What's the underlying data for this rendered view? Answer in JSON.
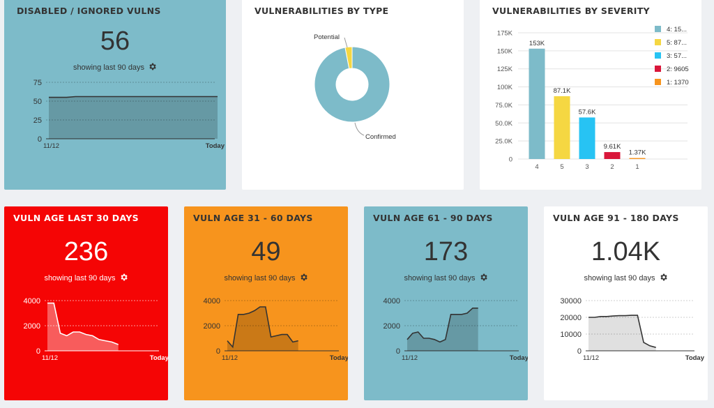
{
  "cards": {
    "disabled": {
      "title": "DISABLED / IGNORED VULNS",
      "value": "56",
      "showing": "showing last 90 days",
      "bg": "#7dbbc9",
      "fg": "#333333",
      "chart_data": {
        "type": "area",
        "yticks": [
          0,
          25,
          50,
          75
        ],
        "ylim": [
          0,
          75
        ],
        "x_start": "11/12",
        "x_end": "Today",
        "y": [
          55,
          55,
          55,
          56,
          56,
          56,
          56,
          56,
          56,
          56,
          56,
          56,
          56,
          56,
          56,
          56,
          56,
          56,
          56,
          56
        ]
      }
    },
    "age30": {
      "title": "VULN AGE LAST 30 DAYS",
      "value": "236",
      "showing": "showing last 90 days",
      "bg": "#f50505",
      "fg": "#ffffff",
      "chart_data": {
        "type": "area",
        "yticks": [
          0,
          2000,
          4000
        ],
        "ylim": [
          0,
          4000
        ],
        "x_start": "11/12",
        "x_end": "Today",
        "y": [
          3800,
          3800,
          1400,
          1200,
          1500,
          1500,
          1300,
          1200,
          900,
          800,
          700,
          500
        ]
      }
    },
    "age60": {
      "title": "VULN AGE 31 - 60 DAYS",
      "value": "49",
      "showing": "showing last 90 days",
      "bg": "#f7941d",
      "fg": "#333333",
      "chart_data": {
        "type": "area",
        "yticks": [
          0,
          2000,
          4000
        ],
        "ylim": [
          0,
          4000
        ],
        "x_start": "11/12",
        "x_end": "Today",
        "y": [
          800,
          300,
          2900,
          2900,
          3000,
          3200,
          3500,
          3500,
          1100,
          1200,
          1300,
          1300,
          700,
          800
        ]
      }
    },
    "age90": {
      "title": "VULN AGE 61 - 90 DAYS",
      "value": "173",
      "showing": "showing last 90 days",
      "bg": "#7dbbc9",
      "fg": "#333333",
      "chart_data": {
        "type": "area",
        "yticks": [
          0,
          2000,
          4000
        ],
        "ylim": [
          0,
          4000
        ],
        "x_start": "11/12",
        "x_end": "Today",
        "y": [
          900,
          1400,
          1500,
          1000,
          1000,
          900,
          700,
          900,
          2900,
          2900,
          2900,
          3000,
          3400,
          3400
        ]
      }
    },
    "age180": {
      "title": "VULN AGE 91 - 180 DAYS",
      "value": "1.04K",
      "showing": "showing last 90 days",
      "bg": "#ffffff",
      "fg": "#333333",
      "chart_data": {
        "type": "area",
        "yticks": [
          0,
          10000,
          20000,
          30000
        ],
        "ylim": [
          0,
          30000
        ],
        "x_start": "11/12",
        "x_end": "Today",
        "y": [
          20000,
          20000,
          20500,
          20500,
          20800,
          21000,
          21000,
          21200,
          21200,
          5000,
          3000,
          2000
        ]
      }
    },
    "bytype": {
      "title": "VULNERABILITIES BY TYPE",
      "chart_data": {
        "type": "pie",
        "labels": [
          "Potential",
          "Confirmed"
        ],
        "values": [
          3,
          97
        ],
        "colors": [
          "#f5d742",
          "#7dbbc9"
        ]
      }
    },
    "byseverity": {
      "title": "VULNERABILITIES BY SEVERITY",
      "chart_data": {
        "type": "bar",
        "categories": [
          "4",
          "5",
          "3",
          "2",
          "1"
        ],
        "values": [
          153000,
          87100,
          57600,
          9610,
          1370
        ],
        "data_labels": [
          "153K",
          "87.1K",
          "57.6K",
          "9.61K",
          "1.37K"
        ],
        "colors": [
          "#7dbbc9",
          "#f5d742",
          "#27c3f3",
          "#d9163a",
          "#f7941d"
        ],
        "yticks": [
          "0",
          "25.0K",
          "50.0K",
          "75.0K",
          "100K",
          "125K",
          "150K",
          "175K"
        ],
        "ylim": [
          0,
          175000
        ],
        "legend": [
          {
            "label": "4: 15...",
            "color": "#7dbbc9"
          },
          {
            "label": "5: 87...",
            "color": "#f5d742"
          },
          {
            "label": "3: 57...",
            "color": "#27c3f3"
          },
          {
            "label": "2: 9605",
            "color": "#d9163a"
          },
          {
            "label": "1: 1370",
            "color": "#f7941d"
          }
        ]
      }
    }
  }
}
